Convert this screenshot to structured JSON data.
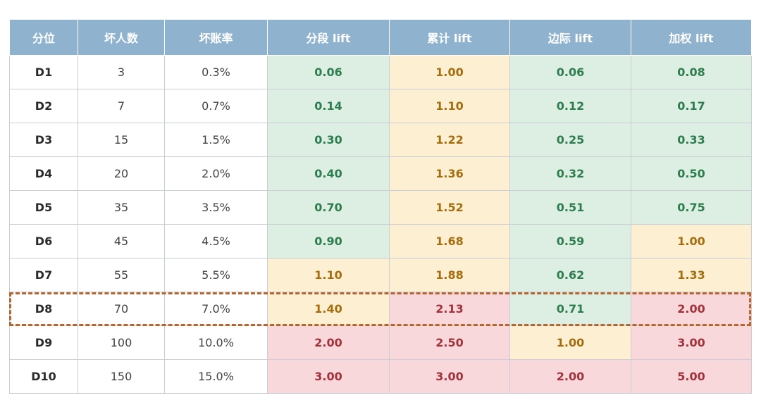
{
  "chart_data": {
    "type": "table",
    "columns": [
      "分位",
      "坏人数",
      "坏账率",
      "分段 lift",
      "累计 lift",
      "边际 lift",
      "加权 lift"
    ],
    "rows": [
      {
        "cells": [
          "D1",
          "3",
          "0.3%",
          "0.06",
          "1.00",
          "0.06",
          "0.08"
        ],
        "levels": [
          "green",
          "amber",
          "green",
          "green"
        ]
      },
      {
        "cells": [
          "D2",
          "7",
          "0.7%",
          "0.14",
          "1.10",
          "0.12",
          "0.17"
        ],
        "levels": [
          "green",
          "amber",
          "green",
          "green"
        ]
      },
      {
        "cells": [
          "D3",
          "15",
          "1.5%",
          "0.30",
          "1.22",
          "0.25",
          "0.33"
        ],
        "levels": [
          "green",
          "amber",
          "green",
          "green"
        ]
      },
      {
        "cells": [
          "D4",
          "20",
          "2.0%",
          "0.40",
          "1.36",
          "0.32",
          "0.50"
        ],
        "levels": [
          "green",
          "amber",
          "green",
          "green"
        ]
      },
      {
        "cells": [
          "D5",
          "35",
          "3.5%",
          "0.70",
          "1.52",
          "0.51",
          "0.75"
        ],
        "levels": [
          "green",
          "amber",
          "green",
          "green"
        ]
      },
      {
        "cells": [
          "D6",
          "45",
          "4.5%",
          "0.90",
          "1.68",
          "0.59",
          "1.00"
        ],
        "levels": [
          "green",
          "amber",
          "green",
          "amber"
        ]
      },
      {
        "cells": [
          "D7",
          "55",
          "5.5%",
          "1.10",
          "1.88",
          "0.62",
          "1.33"
        ],
        "levels": [
          "amber",
          "amber",
          "green",
          "amber"
        ]
      },
      {
        "cells": [
          "D8",
          "70",
          "7.0%",
          "1.40",
          "2.13",
          "0.71",
          "2.00"
        ],
        "levels": [
          "amber",
          "red",
          "green",
          "red"
        ]
      },
      {
        "cells": [
          "D9",
          "100",
          "10.0%",
          "2.00",
          "2.50",
          "1.00",
          "3.00"
        ],
        "levels": [
          "red",
          "red",
          "amber",
          "red"
        ]
      },
      {
        "cells": [
          "D10",
          "150",
          "15.0%",
          "3.00",
          "3.00",
          "2.00",
          "5.00"
        ],
        "levels": [
          "red",
          "red",
          "red",
          "red"
        ]
      }
    ],
    "highlighted_row": "D8",
    "colors": {
      "header": "#8fb3ce",
      "green": "#dcefe2",
      "amber": "#fdf0d2",
      "red": "#f8d8db",
      "highlight_border": "#b7652b"
    }
  }
}
